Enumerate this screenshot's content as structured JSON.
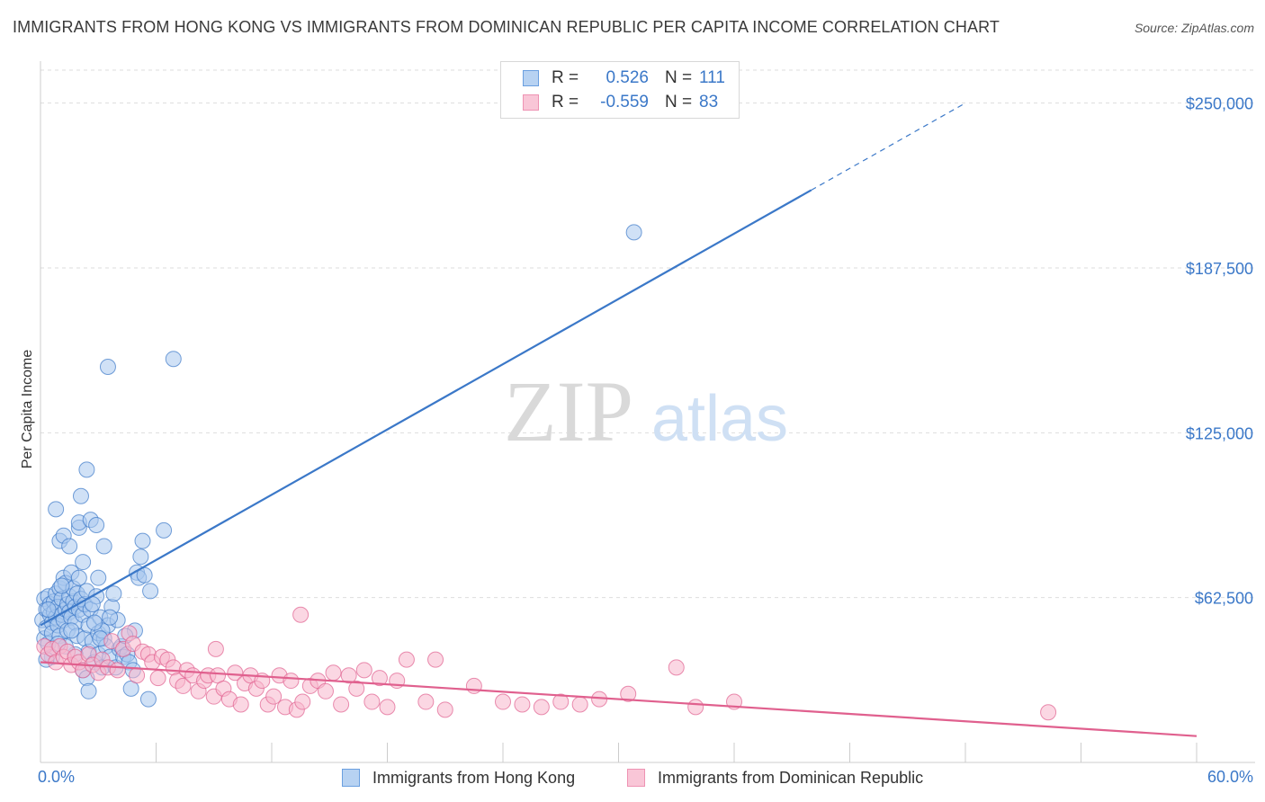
{
  "header": {
    "title": "IMMIGRANTS FROM HONG KONG VS IMMIGRANTS FROM DOMINICAN REPUBLIC PER CAPITA INCOME CORRELATION CHART",
    "source": "Source: ZipAtlas.com"
  },
  "watermark": {
    "zip": "ZIP",
    "atlas": "atlas"
  },
  "legend_top": {
    "rows": [
      {
        "r_label": "R =",
        "r_value": "0.526",
        "n_label": "N =",
        "n_value": "111",
        "color": "#3b78c8",
        "swatch_fill": "#b7d2f2",
        "swatch_border": "#6a9fe0"
      },
      {
        "r_label": "R =",
        "r_value": "-0.559",
        "n_label": "N =",
        "n_value": "83",
        "color": "#3b78c8",
        "swatch_fill": "#f9c6d7",
        "swatch_border": "#ee93b3"
      }
    ]
  },
  "legend_bottom": {
    "items": [
      {
        "label": "Immigrants from Hong Kong",
        "swatch_fill": "#b7d2f2",
        "swatch_border": "#6a9fe0"
      },
      {
        "label": "Immigrants from Dominican Republic",
        "swatch_fill": "#f9c6d7",
        "swatch_border": "#ee93b3"
      }
    ]
  },
  "chart_data": {
    "type": "scatter",
    "title": "IMMIGRANTS FROM HONG KONG VS IMMIGRANTS FROM DOMINICAN REPUBLIC PER CAPITA INCOME CORRELATION CHART",
    "xlabel": "",
    "ylabel": "Per Capita Income",
    "xlim": [
      0,
      60
    ],
    "ylim": [
      0,
      262500
    ],
    "x_tick_labels": [
      "0.0%",
      "60.0%"
    ],
    "y_ticks": [
      62500,
      125000,
      187500,
      250000
    ],
    "y_tick_labels": [
      "$62,500",
      "$125,000",
      "$187,500",
      "$250,000"
    ],
    "grid": true,
    "series": [
      {
        "name": "Immigrants from Hong Kong",
        "color": "#3b78c8",
        "fill": "#a9c8ee",
        "trend": {
          "x0": 0,
          "y0": 52000,
          "x1": 40,
          "y1": 217000,
          "dash_x1": 48,
          "dash_y1": 250000
        },
        "points": [
          [
            0.1,
            54000
          ],
          [
            0.2,
            47000
          ],
          [
            0.2,
            62000
          ],
          [
            0.3,
            58000
          ],
          [
            0.3,
            51000
          ],
          [
            0.4,
            63000
          ],
          [
            0.4,
            45000
          ],
          [
            0.5,
            56000
          ],
          [
            0.5,
            60000
          ],
          [
            0.6,
            53000
          ],
          [
            0.6,
            49000
          ],
          [
            0.7,
            61000
          ],
          [
            0.7,
            57000
          ],
          [
            0.8,
            55000
          ],
          [
            0.8,
            64000
          ],
          [
            0.9,
            52000
          ],
          [
            0.9,
            59000
          ],
          [
            1.0,
            48000
          ],
          [
            1.0,
            66000
          ],
          [
            1.1,
            62000
          ],
          [
            1.1,
            56000
          ],
          [
            1.2,
            70000
          ],
          [
            1.2,
            54000
          ],
          [
            1.3,
            58000
          ],
          [
            1.3,
            68000
          ],
          [
            1.4,
            60000
          ],
          [
            1.4,
            50000
          ],
          [
            1.5,
            63000
          ],
          [
            1.5,
            57000
          ],
          [
            1.6,
            72000
          ],
          [
            1.6,
            55000
          ],
          [
            1.7,
            61000
          ],
          [
            1.7,
            66000
          ],
          [
            1.8,
            59000
          ],
          [
            1.8,
            53000
          ],
          [
            1.9,
            64000
          ],
          [
            1.9,
            48000
          ],
          [
            2.0,
            58000
          ],
          [
            2.0,
            70000
          ],
          [
            2.1,
            62000
          ],
          [
            2.2,
            56000
          ],
          [
            2.2,
            76000
          ],
          [
            2.3,
            60000
          ],
          [
            2.3,
            47000
          ],
          [
            2.4,
            65000
          ],
          [
            2.5,
            52000
          ],
          [
            2.5,
            42000
          ],
          [
            2.6,
            58000
          ],
          [
            2.7,
            46000
          ],
          [
            2.8,
            38000
          ],
          [
            2.9,
            63000
          ],
          [
            3.0,
            49000
          ],
          [
            3.0,
            41000
          ],
          [
            3.1,
            55000
          ],
          [
            3.2,
            36000
          ],
          [
            3.3,
            47000
          ],
          [
            3.4,
            44000
          ],
          [
            3.5,
            52000
          ],
          [
            3.6,
            40000
          ],
          [
            3.7,
            59000
          ],
          [
            3.8,
            64000
          ],
          [
            3.9,
            36000
          ],
          [
            4.0,
            54000
          ],
          [
            4.1,
            43000
          ],
          [
            4.2,
            44000
          ],
          [
            4.3,
            40000
          ],
          [
            4.5,
            41000
          ],
          [
            4.6,
            38000
          ],
          [
            4.8,
            35000
          ],
          [
            4.9,
            50000
          ],
          [
            5.0,
            72000
          ],
          [
            5.1,
            70000
          ],
          [
            5.2,
            78000
          ],
          [
            5.3,
            84000
          ],
          [
            5.4,
            71000
          ],
          [
            5.6,
            24000
          ],
          [
            5.7,
            65000
          ],
          [
            1.0,
            84000
          ],
          [
            1.2,
            86000
          ],
          [
            1.5,
            82000
          ],
          [
            2.0,
            89000
          ],
          [
            2.0,
            91000
          ],
          [
            2.6,
            92000
          ],
          [
            2.9,
            90000
          ],
          [
            3.3,
            82000
          ],
          [
            3.5,
            150000
          ],
          [
            6.9,
            153000
          ],
          [
            30.8,
            201000
          ],
          [
            0.8,
            96000
          ],
          [
            2.1,
            101000
          ],
          [
            2.4,
            111000
          ],
          [
            3.0,
            70000
          ],
          [
            6.4,
            88000
          ],
          [
            1.8,
            41000
          ],
          [
            2.2,
            35000
          ],
          [
            2.4,
            32000
          ],
          [
            2.5,
            27000
          ],
          [
            3.2,
            50000
          ],
          [
            3.6,
            55000
          ],
          [
            4.4,
            48000
          ],
          [
            1.3,
            44000
          ],
          [
            0.6,
            40000
          ],
          [
            0.9,
            45000
          ],
          [
            1.6,
            50000
          ],
          [
            2.8,
            53000
          ],
          [
            0.4,
            58000
          ],
          [
            1.1,
            67000
          ],
          [
            2.7,
            60000
          ],
          [
            3.1,
            47000
          ],
          [
            4.7,
            28000
          ],
          [
            0.3,
            39000
          ]
        ]
      },
      {
        "name": "Immigrants from Dominican Republic",
        "color": "#e0608e",
        "fill": "#f7b7cc",
        "trend": {
          "x0": 0,
          "y0": 38000,
          "x1": 60,
          "y1": 10000
        },
        "points": [
          [
            0.2,
            44000
          ],
          [
            0.4,
            41000
          ],
          [
            0.6,
            43000
          ],
          [
            0.8,
            38000
          ],
          [
            1.0,
            44000
          ],
          [
            1.2,
            40000
          ],
          [
            1.4,
            42000
          ],
          [
            1.6,
            37000
          ],
          [
            1.8,
            40000
          ],
          [
            2.0,
            38000
          ],
          [
            2.2,
            35000
          ],
          [
            2.5,
            41000
          ],
          [
            2.7,
            37000
          ],
          [
            3.0,
            34000
          ],
          [
            3.2,
            39000
          ],
          [
            3.5,
            36000
          ],
          [
            3.7,
            46000
          ],
          [
            4.0,
            35000
          ],
          [
            4.3,
            43000
          ],
          [
            4.6,
            49000
          ],
          [
            4.8,
            45000
          ],
          [
            5.0,
            33000
          ],
          [
            5.3,
            42000
          ],
          [
            5.6,
            41000
          ],
          [
            5.8,
            38000
          ],
          [
            6.1,
            32000
          ],
          [
            6.3,
            40000
          ],
          [
            6.6,
            39000
          ],
          [
            6.9,
            36000
          ],
          [
            7.1,
            31000
          ],
          [
            7.4,
            29000
          ],
          [
            7.6,
            35000
          ],
          [
            7.9,
            33000
          ],
          [
            8.2,
            27000
          ],
          [
            8.5,
            31000
          ],
          [
            8.7,
            33000
          ],
          [
            9.0,
            25000
          ],
          [
            9.2,
            33000
          ],
          [
            9.5,
            28000
          ],
          [
            9.8,
            24000
          ],
          [
            10.1,
            34000
          ],
          [
            10.4,
            22000
          ],
          [
            10.6,
            30000
          ],
          [
            10.9,
            33000
          ],
          [
            11.2,
            28000
          ],
          [
            11.5,
            31000
          ],
          [
            11.8,
            22000
          ],
          [
            12.1,
            25000
          ],
          [
            12.4,
            33000
          ],
          [
            12.7,
            21000
          ],
          [
            13.0,
            31000
          ],
          [
            13.3,
            20000
          ],
          [
            13.6,
            23000
          ],
          [
            14.0,
            29000
          ],
          [
            14.4,
            31000
          ],
          [
            14.8,
            27000
          ],
          [
            15.2,
            34000
          ],
          [
            15.6,
            22000
          ],
          [
            16.0,
            33000
          ],
          [
            16.4,
            28000
          ],
          [
            16.8,
            35000
          ],
          [
            17.2,
            23000
          ],
          [
            17.6,
            32000
          ],
          [
            18.0,
            21000
          ],
          [
            18.5,
            31000
          ],
          [
            19.0,
            39000
          ],
          [
            20.0,
            23000
          ],
          [
            21.0,
            20000
          ],
          [
            22.5,
            29000
          ],
          [
            24.0,
            23000
          ],
          [
            25.0,
            22000
          ],
          [
            26.0,
            21000
          ],
          [
            27.0,
            23000
          ],
          [
            28.0,
            22000
          ],
          [
            29.0,
            24000
          ],
          [
            30.5,
            26000
          ],
          [
            33.0,
            36000
          ],
          [
            34.0,
            21000
          ],
          [
            36.0,
            23000
          ],
          [
            13.5,
            56000
          ],
          [
            9.1,
            43000
          ],
          [
            20.5,
            39000
          ],
          [
            52.3,
            19000
          ]
        ]
      }
    ]
  }
}
